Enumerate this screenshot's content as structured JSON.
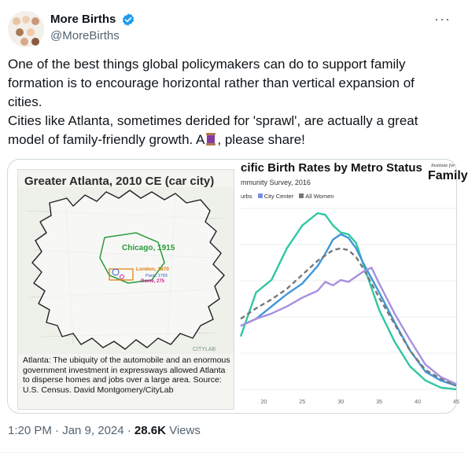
{
  "author": {
    "display_name": "More Births",
    "handle": "@MoreBirths"
  },
  "menu_icon": "more-horizontal-icon",
  "tweet": {
    "line1": "One of the best things global policymakers can do to support family formation is to encourage horizontal rather than vertical expansion of cities.",
    "line2_part1": "Cities like Atlanta, sometimes derided for 'sprawl', are actually a great model of family-friendly growth. A",
    "line2_part2": ", please share!"
  },
  "map_image": {
    "title": "Greater Atlanta, 2010 CE (car city)",
    "labels": {
      "chicago": "Chicago, 1915",
      "london": "London, 1870",
      "paris": "Paris, 1783",
      "rome": "Rome, 275",
      "credit": "CITYLAB"
    },
    "caption": "Atlanta: The ubiquity of the automobile and an enormous government investment in expressways allowed Atlanta to disperse homes and jobs over a large area. Source: U.S. Census. David Montgomery/CityLab"
  },
  "chart_image": {
    "title": "cific Birth Rates by Metro Status",
    "subtitle": "mmunity Survey, 2016",
    "brand_small": "Institute for",
    "brand": "Family"
  },
  "chart_data": {
    "type": "line",
    "title": "cific Birth Rates by Metro Status",
    "subtitle": "mmunity Survey, 2016",
    "xlim": [
      17,
      45
    ],
    "x_ticks": [
      "20",
      "25",
      "30",
      "35",
      "40",
      "45"
    ],
    "grid": "horizontal",
    "series": [
      {
        "name": "urbs",
        "color": "#2fc7a2",
        "style": "solid",
        "x": [
          17,
          19,
          21,
          23,
          25,
          27,
          28,
          29,
          30,
          31,
          32,
          33,
          35,
          37,
          39,
          41,
          43,
          45
        ],
        "y": [
          0.3,
          0.55,
          0.62,
          0.8,
          0.93,
          1.0,
          0.99,
          0.93,
          0.89,
          0.88,
          0.83,
          0.7,
          0.45,
          0.27,
          0.13,
          0.05,
          0.01,
          0.0
        ]
      },
      {
        "name": "City Center",
        "color": "#3f97d8",
        "style": "solid",
        "x": [
          17,
          19,
          21,
          23,
          25,
          27,
          28,
          29,
          30,
          31,
          32,
          33,
          35,
          37,
          39,
          41,
          43,
          45
        ],
        "y": [
          0.36,
          0.4,
          0.47,
          0.54,
          0.6,
          0.7,
          0.77,
          0.85,
          0.88,
          0.86,
          0.8,
          0.71,
          0.55,
          0.38,
          0.22,
          0.1,
          0.05,
          0.02
        ]
      },
      {
        "name": "All Women",
        "color": "#777777",
        "style": "dashed",
        "x": [
          17,
          19,
          21,
          23,
          25,
          27,
          28,
          29,
          30,
          31,
          32,
          33,
          35,
          37,
          39,
          41,
          43,
          45
        ],
        "y": [
          0.4,
          0.46,
          0.51,
          0.57,
          0.65,
          0.73,
          0.76,
          0.79,
          0.8,
          0.79,
          0.75,
          0.68,
          0.52,
          0.37,
          0.22,
          0.11,
          0.06,
          0.02
        ]
      },
      {
        "name": "",
        "color": "#a690de",
        "style": "solid",
        "x": [
          17,
          19,
          21,
          23,
          25,
          27,
          28,
          29,
          30,
          31,
          32,
          33,
          34,
          35,
          37,
          39,
          41,
          43,
          45
        ],
        "y": [
          0.36,
          0.4,
          0.43,
          0.47,
          0.52,
          0.56,
          0.61,
          0.59,
          0.62,
          0.61,
          0.64,
          0.67,
          0.69,
          0.6,
          0.43,
          0.28,
          0.14,
          0.07,
          0.03
        ]
      }
    ]
  },
  "meta": {
    "time": "1:20 PM · Jan 9, 2024 · ",
    "views_count": "28.6K",
    "views_label": " Views"
  },
  "colors": {
    "verified": "#1d9bf0",
    "secondary_text": "#536471"
  }
}
